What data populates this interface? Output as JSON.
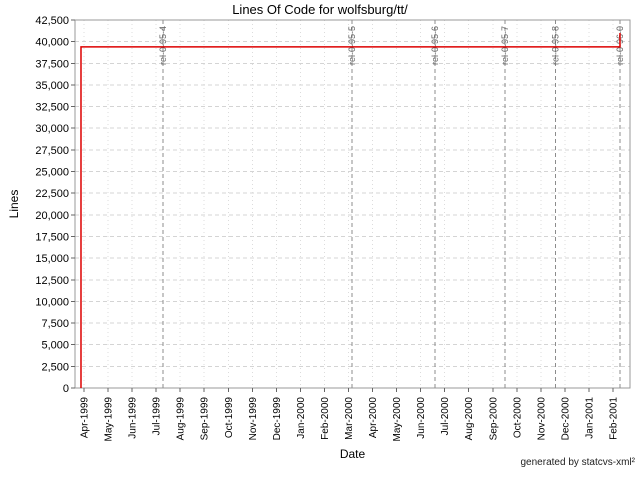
{
  "chart_data": {
    "type": "line",
    "subtype": "step",
    "title": "Lines Of Code for wolfsburg/tt/",
    "xlabel": "Date",
    "ylabel": "Lines",
    "footer": "generated by statcvs-xml²",
    "ylim": [
      0,
      42500
    ],
    "y_tick_step": 2500,
    "y_tick_labels": [
      "0",
      "2,500",
      "5,000",
      "7,500",
      "10,000",
      "12,500",
      "15,000",
      "17,500",
      "20,000",
      "22,500",
      "25,000",
      "27,500",
      "30,000",
      "32,500",
      "35,000",
      "37,500",
      "40,000",
      "42,500"
    ],
    "x_tick_labels": [
      "Apr-1999",
      "May-1999",
      "Jun-1999",
      "Jul-1999",
      "Aug-1999",
      "Sep-1999",
      "Oct-1999",
      "Nov-1999",
      "Dec-1999",
      "Jan-2000",
      "Feb-2000",
      "Mar-2000",
      "Apr-2000",
      "May-2000",
      "Jun-2000",
      "Jul-2000",
      "Aug-2000",
      "Sep-2000",
      "Oct-2000",
      "Nov-2000",
      "Dec-2000",
      "Jan-2001",
      "Feb-2001"
    ],
    "grid": true,
    "legend": "none",
    "series": [
      {
        "name": "lines-of-code",
        "color": "#dd0000",
        "points": [
          {
            "x": -0.125,
            "y": 0
          },
          {
            "x": -0.125,
            "y": 39400
          },
          {
            "x": 22.29,
            "y": 39400
          },
          {
            "x": 22.29,
            "y": 41000
          }
        ]
      }
    ],
    "releases": [
      {
        "label": "rel-0-95-4",
        "x": 3.28
      },
      {
        "label": "rel-0-95-5",
        "x": 11.14
      },
      {
        "label": "rel-0-95-6",
        "x": 14.6
      },
      {
        "label": "rel-0-95-7",
        "x": 17.5
      },
      {
        "label": "rel-0-95-8",
        "x": 19.6
      },
      {
        "label": "rel-0-96-0",
        "x": 22.29
      }
    ],
    "colors": {
      "series": "#dd0000",
      "plot_border": "#999999",
      "h_gridline": "#d4d4d4",
      "v_gridline": "#dcdcdc",
      "release_line": "#8c8c8c",
      "release_label": "#666666",
      "tick_mark": "#666666",
      "tick_label": "#000000"
    }
  }
}
